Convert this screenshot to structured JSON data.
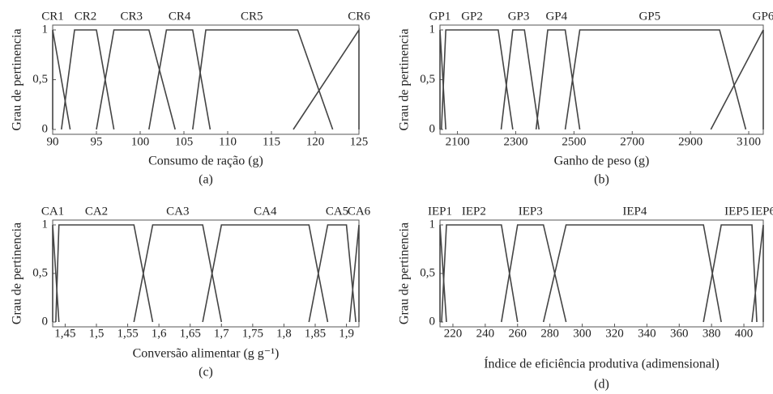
{
  "chart_data": [
    {
      "type": "line",
      "xlabel": "Consumo de ração (g)",
      "ylabel": "Grau de pertinencia",
      "caption": "(a)",
      "xlim": [
        90,
        125
      ],
      "xticks": [
        90,
        95,
        100,
        105,
        110,
        115,
        120,
        125
      ],
      "ylim": [
        0,
        1
      ],
      "yticks": [
        0,
        {
          "value": 0.5,
          "label": "0,5"
        },
        1
      ],
      "series": [
        {
          "name": "CR1",
          "x": [
            90,
            90,
            92
          ],
          "values": [
            0,
            1,
            0
          ]
        },
        {
          "name": "CR2",
          "x": [
            91,
            92.5,
            95,
            97
          ],
          "values": [
            0,
            1,
            1,
            0
          ]
        },
        {
          "name": "CR3",
          "x": [
            95,
            97,
            101,
            104
          ],
          "values": [
            0,
            1,
            1,
            0
          ]
        },
        {
          "name": "CR4",
          "x": [
            101,
            103,
            106,
            108
          ],
          "values": [
            0,
            1,
            1,
            0
          ]
        },
        {
          "name": "CR5",
          "x": [
            106,
            107.5,
            118,
            122
          ],
          "values": [
            0,
            1,
            1,
            0
          ]
        },
        {
          "name": "CR6",
          "x": [
            117.5,
            125,
            125
          ],
          "values": [
            0,
            1,
            0
          ]
        }
      ]
    },
    {
      "type": "line",
      "xlabel": "Ganho de peso (g)",
      "ylabel": "Grau de pertinencia",
      "caption": "(b)",
      "xlim": [
        2040,
        3150
      ],
      "xticks": [
        2100,
        2300,
        2500,
        2700,
        2900,
        3100
      ],
      "ylim": [
        0,
        1
      ],
      "yticks": [
        0,
        {
          "value": 0.5,
          "label": "0,5"
        },
        1
      ],
      "series": [
        {
          "name": "GP1",
          "x": [
            2040,
            2040,
            2060
          ],
          "values": [
            0,
            1,
            0
          ]
        },
        {
          "name": "GP2",
          "x": [
            2045,
            2060,
            2240,
            2290
          ],
          "values": [
            0,
            1,
            1,
            0
          ]
        },
        {
          "name": "GP3",
          "x": [
            2250,
            2290,
            2330,
            2380
          ],
          "values": [
            0,
            1,
            1,
            0
          ]
        },
        {
          "name": "GP4",
          "x": [
            2370,
            2410,
            2470,
            2520
          ],
          "values": [
            0,
            1,
            1,
            0
          ]
        },
        {
          "name": "GP5",
          "x": [
            2470,
            2520,
            3000,
            3090
          ],
          "values": [
            0,
            1,
            1,
            0
          ]
        },
        {
          "name": "GP6",
          "x": [
            2970,
            3150,
            3150
          ],
          "values": [
            0,
            1,
            0
          ]
        }
      ]
    },
    {
      "type": "line",
      "xlabel": "Conversão alimentar (g g⁻¹)",
      "ylabel": "Grau de pertinencia",
      "caption": "(c)",
      "xlim": [
        1.43,
        1.92
      ],
      "xticks": [
        {
          "value": 1.45,
          "label": "1,45"
        },
        {
          "value": 1.5,
          "label": "1,5"
        },
        {
          "value": 1.55,
          "label": "1,55"
        },
        {
          "value": 1.6,
          "label": "1,6"
        },
        {
          "value": 1.65,
          "label": "1,65"
        },
        {
          "value": 1.7,
          "label": "1,7"
        },
        {
          "value": 1.75,
          "label": "1,75"
        },
        {
          "value": 1.8,
          "label": "1,8"
        },
        {
          "value": 1.85,
          "label": "1,85"
        },
        {
          "value": 1.9,
          "label": "1,9"
        }
      ],
      "ylim": [
        0,
        1
      ],
      "yticks": [
        0,
        {
          "value": 0.5,
          "label": "0,5"
        },
        1
      ],
      "series": [
        {
          "name": "CA1",
          "x": [
            1.43,
            1.43,
            1.44
          ],
          "values": [
            0,
            1,
            0
          ]
        },
        {
          "name": "CA2",
          "x": [
            1.435,
            1.44,
            1.56,
            1.59
          ],
          "values": [
            0,
            1,
            1,
            0
          ]
        },
        {
          "name": "CA3",
          "x": [
            1.56,
            1.59,
            1.67,
            1.7
          ],
          "values": [
            0,
            1,
            1,
            0
          ]
        },
        {
          "name": "CA4",
          "x": [
            1.67,
            1.7,
            1.84,
            1.87
          ],
          "values": [
            0,
            1,
            1,
            0
          ]
        },
        {
          "name": "CA5",
          "x": [
            1.84,
            1.87,
            1.9,
            1.915
          ],
          "values": [
            0,
            1,
            1,
            0
          ]
        },
        {
          "name": "CA6",
          "x": [
            1.905,
            1.92,
            1.92
          ],
          "values": [
            0,
            1,
            0
          ]
        }
      ]
    },
    {
      "type": "line",
      "xlabel": "Índice de eficiência produtiva (adimensional)",
      "ylabel": "Grau de pertinencia",
      "caption": "(d)",
      "xlim": [
        212,
        412
      ],
      "xticks": [
        220,
        240,
        260,
        280,
        300,
        320,
        340,
        360,
        380,
        400
      ],
      "ylim": [
        0,
        1
      ],
      "yticks": [
        0,
        {
          "value": 0.5,
          "label": "0,5"
        },
        1
      ],
      "series": [
        {
          "name": "IEP1",
          "x": [
            212,
            212,
            216
          ],
          "values": [
            0,
            1,
            0
          ]
        },
        {
          "name": "IEP2",
          "x": [
            213,
            216,
            250,
            260
          ],
          "values": [
            0,
            1,
            1,
            0
          ]
        },
        {
          "name": "IEP3",
          "x": [
            250,
            260,
            276,
            290
          ],
          "values": [
            0,
            1,
            1,
            0
          ]
        },
        {
          "name": "IEP4",
          "x": [
            276,
            290,
            375,
            386
          ],
          "values": [
            0,
            1,
            1,
            0
          ]
        },
        {
          "name": "IEP5",
          "x": [
            375,
            386,
            405,
            408
          ],
          "values": [
            0,
            1,
            1,
            0
          ]
        },
        {
          "name": "IEP6",
          "x": [
            405,
            412,
            412
          ],
          "values": [
            0,
            1,
            0
          ]
        }
      ]
    }
  ]
}
